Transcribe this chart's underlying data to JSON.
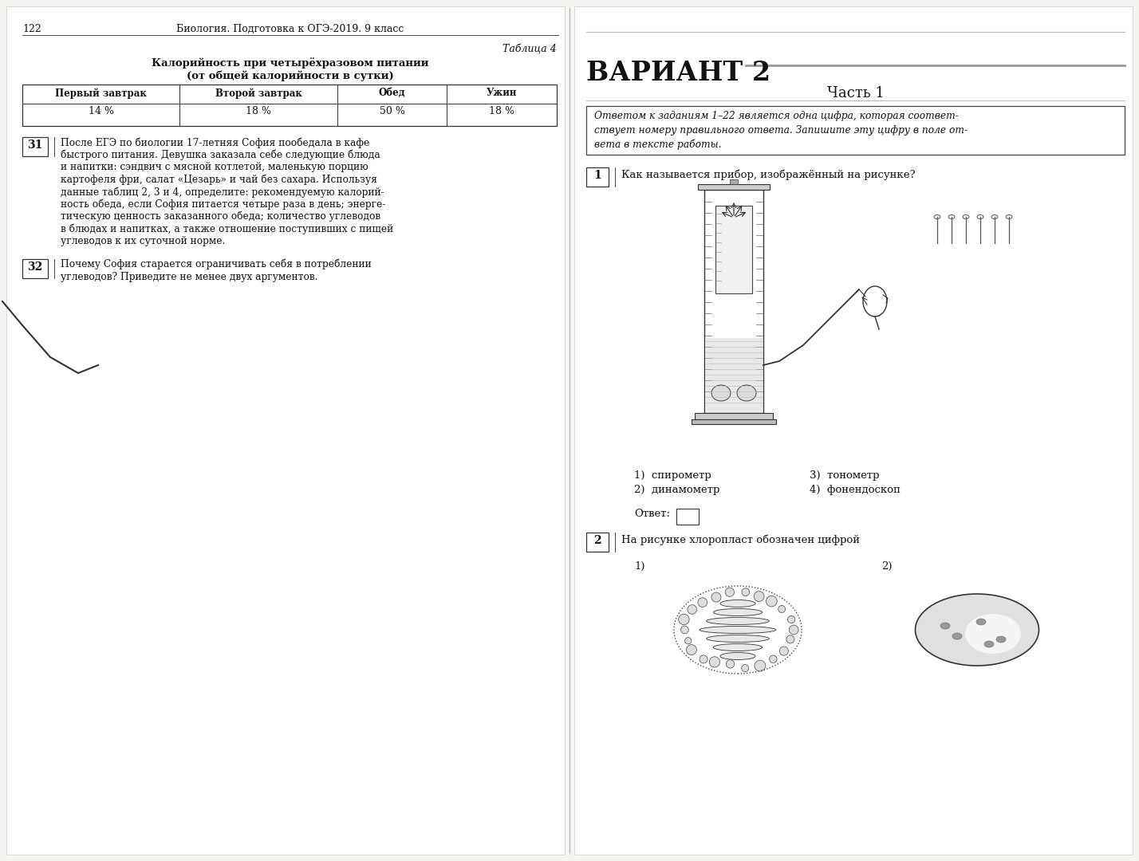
{
  "bg_color": "#f5f4f0",
  "page_bg": "#ffffff",
  "page_left": {
    "page_number": "122",
    "header": "Биология. Подготовка к ОГЭ-2019. 9 класс",
    "table_label": "Таблица 4",
    "table_title_line1": "Калорийность при четырёхразовом питании",
    "table_title_line2": "(от общей калорийности в сутки)",
    "table_headers": [
      "Первый завтрак",
      "Второй завтрак",
      "Обед",
      "Ужин"
    ],
    "table_values": [
      "14 %",
      "18 %",
      "50 %",
      "18 %"
    ],
    "q31_num": "31",
    "q32_num": "32",
    "q31_lines": [
      "После ЕГЭ по биологии 17-летняя София пообедала в кафе",
      "быстрого питания. Девушка заказала себе следующие блюда",
      "и напитки: сэндвич с мясной котлетой, маленькую порцию",
      "картофеля фри, салат «Цезарь» и чай без сахара. Используя",
      "данные таблиц 2, 3 и 4, определите: рекомендуемую калорий-",
      "ность обеда, если София питается четыре раза в день; энерге-",
      "тическую ценность заказанного обеда; количество углеводов",
      "в блюдах и напитках, а также отношение поступивших с пищей",
      "углеводов к их суточной норме."
    ],
    "q32_lines": [
      "Почему София старается ограничивать себя в потреблении",
      "углеводов? Приведите не менее двух аргументов."
    ]
  },
  "page_right": {
    "variant_title": "ВАРИАНТ 2",
    "part_title": "Часть 1",
    "instr_lines": [
      "Ответом к заданиям 1–22 является одна цифра, которая соответ-",
      "ствует номеру правильного ответа. Запишите эту цифру в поле от-",
      "вета в тексте работы."
    ],
    "q1_num": "1",
    "q1_text": "Как называется прибор, изображённый на рисунке?",
    "q1_answers_left": [
      "1)  спирометр",
      "2)  динамометр"
    ],
    "q1_answers_right": [
      "3)  тонометр",
      "4)  фонендоскоп"
    ],
    "q1_answer_label": "Ответ:",
    "q2_num": "2",
    "q2_text": "На рисунке хлоропласт обозначен цифрой",
    "q2_label_1": "1)",
    "q2_label_2": "2)"
  }
}
